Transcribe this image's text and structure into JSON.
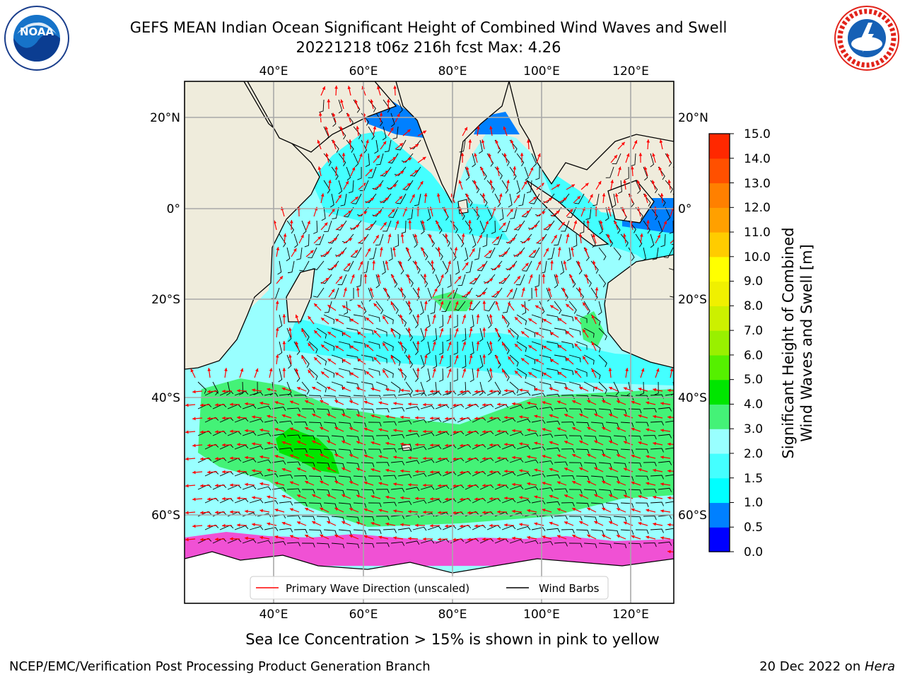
{
  "title": {
    "line1": "GEFS MEAN Indian Ocean Significant Height of Combined Wind Waves and Swell",
    "line2": "20221218 t06z 216h fcst   Max: 4.26"
  },
  "logos": {
    "left": "noaa-logo",
    "right": "nws-logo"
  },
  "map": {
    "top_lon_labels": [
      "40°E",
      "60°E",
      "80°E",
      "100°E",
      "120°E"
    ],
    "bottom_lon_labels": [
      "40°E",
      "60°E",
      "80°E",
      "100°E",
      "120°E"
    ],
    "left_lat_labels": [
      "20°N",
      "0°",
      "20°S",
      "40°S",
      "60°S"
    ],
    "right_lat_labels": [
      "20°N",
      "0°",
      "20°S",
      "40°S",
      "60°S"
    ],
    "lon_range": [
      20,
      130
    ],
    "lat_range": [
      -73,
      28
    ],
    "legend": {
      "wave_label": "Primary Wave Direction (unscaled)",
      "barb_label": "Wind Barbs",
      "wave_color": "#ff0000",
      "barb_color": "#000000"
    }
  },
  "colorbar": {
    "ticks": [
      "15.0",
      "14.0",
      "13.0",
      "12.0",
      "11.0",
      "10.0",
      "9.0",
      "8.0",
      "7.0",
      "6.0",
      "5.0",
      "4.0",
      "3.0",
      "2.0",
      "1.5",
      "1.0",
      "0.5",
      "0.0"
    ],
    "colors": [
      "#0000ff",
      "#0080ff",
      "#00ffff",
      "#44ffff",
      "#99ffff",
      "#44f277",
      "#00e600",
      "#55f000",
      "#99f000",
      "#ccf000",
      "#f0f000",
      "#ffff00",
      "#ffcc00",
      "#ffa000",
      "#ff8000",
      "#ff5000",
      "#ff2800",
      "#ff0000"
    ],
    "title_line1": "Significant Height of Combined",
    "title_line2": "Wind Waves and Swell [m]"
  },
  "caption": "Sea Ice Concentration > 15% is shown in pink to yellow",
  "footer": {
    "credit": "NCEP/EMC/Verification Post Processing Product Generation Branch",
    "date_prefix": "20 Dec 2022 on ",
    "machine": "Hera"
  }
}
